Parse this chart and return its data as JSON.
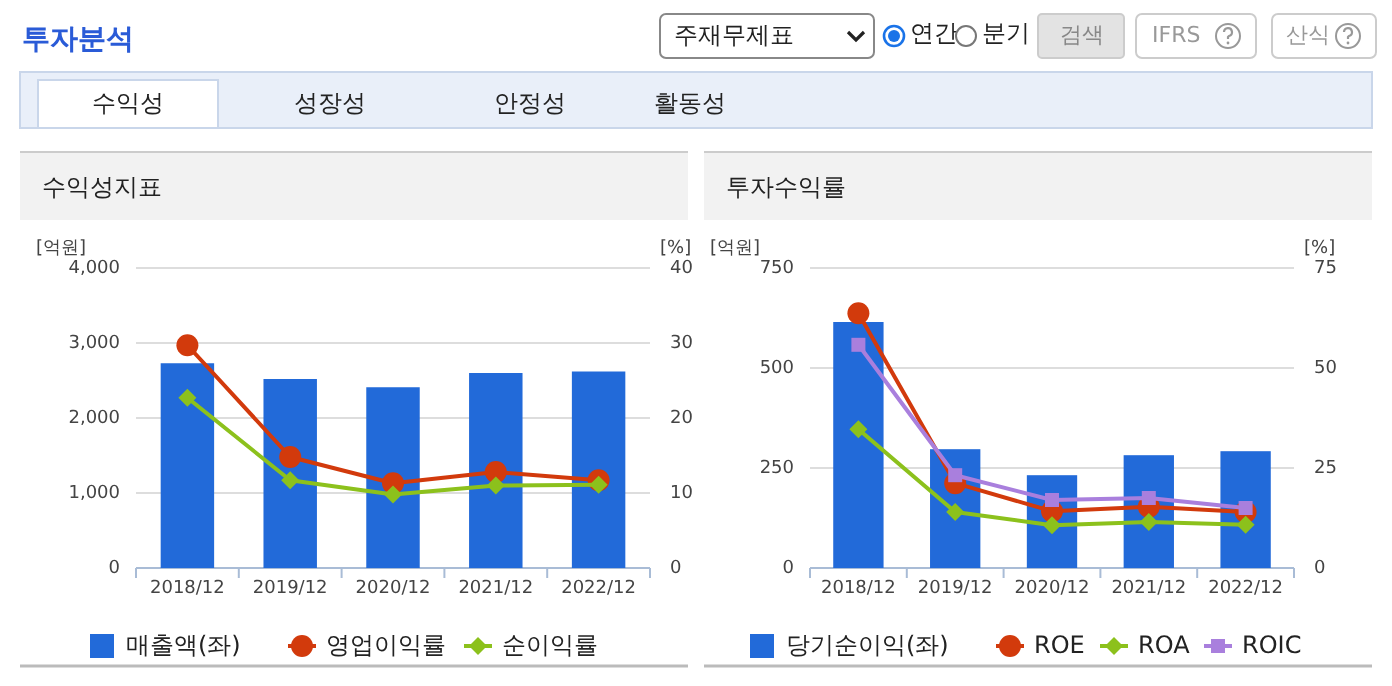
{
  "chart_data": [
    {
      "type": "other",
      "title": "투자분석",
      "annotations": [
        "주재무제표",
        "연간",
        "분기",
        "검색",
        "IFRS",
        "산식",
        "수익성",
        "성장성",
        "안정성",
        "활동성"
      ]
    },
    {
      "type": "bar",
      "title": "수익성지표",
      "ylabel": "[억원]",
      "y2label": "[%]",
      "categories": [
        "2018/12",
        "2019/12",
        "2020/12",
        "2021/12",
        "2022/12"
      ],
      "ylim": [
        0,
        4000
      ],
      "yticks": [
        0,
        {
          "value": 1000,
          "label": "1,000"
        },
        {
          "value": 2000,
          "label": "2,000"
        },
        {
          "value": 3000,
          "label": "3,000"
        },
        {
          "value": 4000,
          "label": "4,000"
        }
      ],
      "y2lim": [
        0,
        40
      ],
      "y2ticks": [
        0,
        10,
        20,
        30,
        40
      ],
      "grid": "y",
      "legend": "bottom",
      "series": [
        {
          "name": "매출액(좌)",
          "type": "bar",
          "color": "#226ad9",
          "values": [
            2730,
            2520,
            2410,
            2600,
            2620
          ]
        },
        {
          "name": "영업이익률",
          "type": "line",
          "axis": "y2",
          "marker": "circle",
          "color": "#d23a0c",
          "values": [
            29.7,
            14.8,
            11.3,
            12.8,
            11.7
          ]
        },
        {
          "name": "순이익률",
          "type": "line",
          "axis": "y2",
          "marker": "diamond",
          "color": "#8cc11c",
          "values": [
            22.7,
            11.7,
            9.8,
            11.0,
            11.1
          ]
        }
      ]
    },
    {
      "type": "bar",
      "title": "투자수익률",
      "ylabel": "[억원]",
      "y2label": "[%]",
      "categories": [
        "2018/12",
        "2019/12",
        "2020/12",
        "2021/12",
        "2022/12"
      ],
      "ylim": [
        0,
        750
      ],
      "yticks": [
        0,
        250,
        500,
        750
      ],
      "y2lim": [
        0,
        75
      ],
      "y2ticks": [
        0,
        25,
        50,
        75
      ],
      "grid": "y",
      "legend": "bottom",
      "series": [
        {
          "name": "당기순이익(좌)",
          "type": "bar",
          "color": "#226ad9",
          "values": [
            615,
            297,
            232,
            282,
            292
          ]
        },
        {
          "name": "ROE",
          "type": "line",
          "axis": "y2",
          "marker": "circle",
          "color": "#d23a0c",
          "values": [
            63.7,
            21.2,
            14.2,
            15.3,
            14.0
          ]
        },
        {
          "name": "ROA",
          "type": "line",
          "axis": "y2",
          "marker": "diamond",
          "color": "#8cc11c",
          "values": [
            34.7,
            14.0,
            10.7,
            11.5,
            10.8
          ]
        },
        {
          "name": "ROIC",
          "type": "line",
          "axis": "y2",
          "marker": "square",
          "color": "#a97fdd",
          "values": [
            55.8,
            23.2,
            17.0,
            17.5,
            15.0
          ]
        }
      ]
    }
  ]
}
